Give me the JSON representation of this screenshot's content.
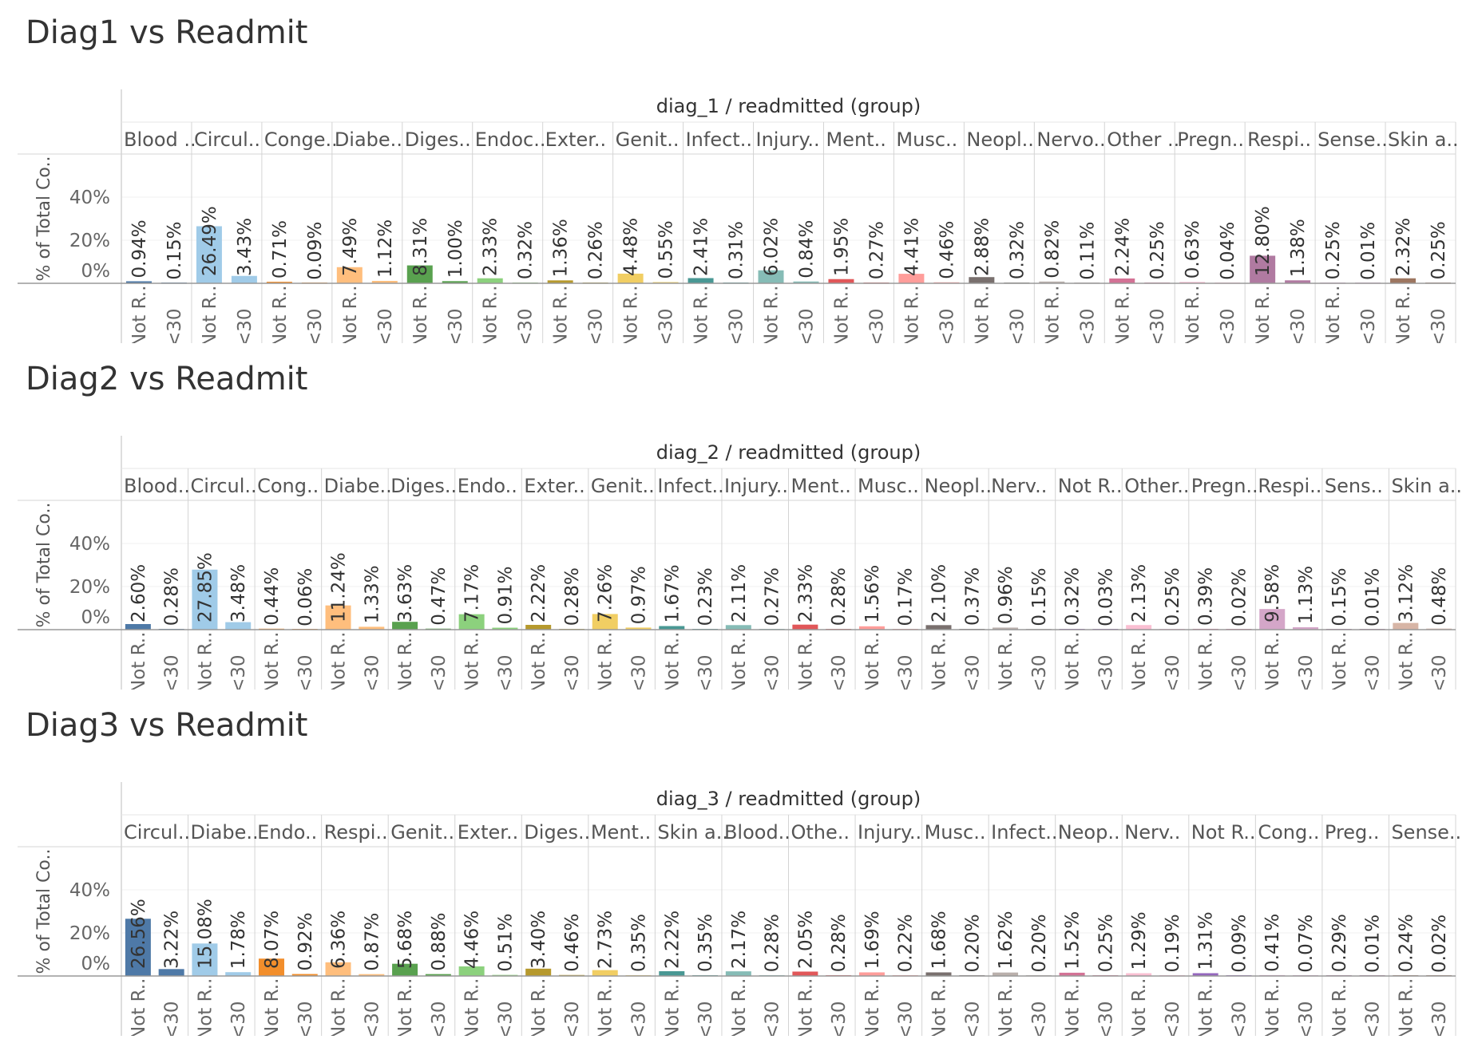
{
  "chart_data": [
    {
      "type": "bar",
      "title": "Diag1 vs Readmit",
      "header": "diag_1  /  readmitted (group)",
      "ylabel": "% of Total Co..",
      "yticks": [
        "40%",
        "20%",
        "0%"
      ],
      "ylim": [
        0,
        60
      ],
      "groups": [
        "Blood ..",
        "Circul..",
        "Conge..",
        "Diabe..",
        "Diges..",
        "Endoc..",
        "Exter..",
        "Genit..",
        "Infect..",
        "Injury..",
        "Ment..",
        "Musc..",
        "Neopl..",
        "Nervo..",
        "Other ..",
        "Pregn..",
        "Respi..",
        "Sense..",
        "Skin a.."
      ],
      "subcategories": [
        "Not R..",
        "<30"
      ],
      "values": [
        [
          0.94,
          0.15
        ],
        [
          26.49,
          3.43
        ],
        [
          0.71,
          0.09
        ],
        [
          7.49,
          1.12
        ],
        [
          8.31,
          1.0
        ],
        [
          2.33,
          0.32
        ],
        [
          1.36,
          0.26
        ],
        [
          4.48,
          0.55
        ],
        [
          2.41,
          0.31
        ],
        [
          6.02,
          0.84
        ],
        [
          1.95,
          0.27
        ],
        [
          4.41,
          0.46
        ],
        [
          2.88,
          0.32
        ],
        [
          0.82,
          0.11
        ],
        [
          2.24,
          0.25
        ],
        [
          0.63,
          0.04
        ],
        [
          12.8,
          1.38
        ],
        [
          0.25,
          0.01
        ],
        [
          2.32,
          0.25
        ]
      ],
      "labels": [
        [
          "0.94%",
          "0.15%"
        ],
        [
          "26.49%",
          "3.43%"
        ],
        [
          "0.71%",
          "0.09%"
        ],
        [
          "7.49%",
          "1.12%"
        ],
        [
          "8.31%",
          "1.00%"
        ],
        [
          "2.33%",
          "0.32%"
        ],
        [
          "1.36%",
          "0.26%"
        ],
        [
          "4.48%",
          "0.55%"
        ],
        [
          "2.41%",
          "0.31%"
        ],
        [
          "6.02%",
          "0.84%"
        ],
        [
          "1.95%",
          "0.27%"
        ],
        [
          "4.41%",
          "0.46%"
        ],
        [
          "2.88%",
          "0.32%"
        ],
        [
          "0.82%",
          "0.11%"
        ],
        [
          "2.24%",
          "0.25%"
        ],
        [
          "0.63%",
          "0.04%"
        ],
        [
          "12.80%",
          "1.38%"
        ],
        [
          "0.25%",
          "0.01%"
        ],
        [
          "2.32%",
          "0.25%"
        ]
      ],
      "colors": [
        "#4e79a7",
        "#a0cbe8",
        "#f28e2b",
        "#ffbe7d",
        "#59a14f",
        "#8cd17d",
        "#b6992d",
        "#f1ce63",
        "#499894",
        "#86bcb6",
        "#e15759",
        "#ff9d9a",
        "#79706e",
        "#bab0ac",
        "#d37295",
        "#fabfd2",
        "#b07aa1",
        "#d4a6c8",
        "#9d7660"
      ]
    },
    {
      "type": "bar",
      "title": "Diag2 vs Readmit",
      "header": "diag_2  /  readmitted (group)",
      "ylabel": "% of Total Co..",
      "yticks": [
        "40%",
        "20%",
        "0%"
      ],
      "ylim": [
        0,
        60
      ],
      "groups": [
        "Blood..",
        "Circul..",
        "Cong..",
        "Diabe..",
        "Diges..",
        "Endo..",
        "Exter..",
        "Genit..",
        "Infect..",
        "Injury..",
        "Ment..",
        "Musc..",
        "Neopl..",
        "Nerv..",
        "Not R..",
        "Other..",
        "Pregn..",
        "Respi..",
        "Sens..",
        "Skin a.."
      ],
      "subcategories": [
        "Not R..",
        "<30"
      ],
      "values": [
        [
          2.6,
          0.28
        ],
        [
          27.85,
          3.48
        ],
        [
          0.44,
          0.06
        ],
        [
          11.24,
          1.33
        ],
        [
          3.63,
          0.47
        ],
        [
          7.17,
          0.91
        ],
        [
          2.22,
          0.28
        ],
        [
          7.26,
          0.97
        ],
        [
          1.67,
          0.23
        ],
        [
          2.11,
          0.27
        ],
        [
          2.33,
          0.28
        ],
        [
          1.56,
          0.17
        ],
        [
          2.1,
          0.37
        ],
        [
          0.96,
          0.15
        ],
        [
          0.32,
          0.03
        ],
        [
          2.13,
          0.25
        ],
        [
          0.39,
          0.02
        ],
        [
          9.58,
          1.13
        ],
        [
          0.15,
          0.01
        ],
        [
          3.12,
          0.48
        ]
      ],
      "labels": [
        [
          "2.60%",
          "0.28%"
        ],
        [
          "27.85%",
          "3.48%"
        ],
        [
          "0.44%",
          "0.06%"
        ],
        [
          "11.24%",
          "1.33%"
        ],
        [
          "3.63%",
          "0.47%"
        ],
        [
          "7.17%",
          "0.91%"
        ],
        [
          "2.22%",
          "0.28%"
        ],
        [
          "7.26%",
          "0.97%"
        ],
        [
          "1.67%",
          "0.23%"
        ],
        [
          "2.11%",
          "0.27%"
        ],
        [
          "2.33%",
          "0.28%"
        ],
        [
          "1.56%",
          "0.17%"
        ],
        [
          "2.10%",
          "0.37%"
        ],
        [
          "0.96%",
          "0.15%"
        ],
        [
          "0.32%",
          "0.03%"
        ],
        [
          "2.13%",
          "0.25%"
        ],
        [
          "0.39%",
          "0.02%"
        ],
        [
          "9.58%",
          "1.13%"
        ],
        [
          "0.15%",
          "0.01%"
        ],
        [
          "3.12%",
          "0.48%"
        ]
      ],
      "colors": [
        "#4e79a7",
        "#a0cbe8",
        "#f28e2b",
        "#ffbe7d",
        "#59a14f",
        "#8cd17d",
        "#b6992d",
        "#f1ce63",
        "#499894",
        "#86bcb6",
        "#e15759",
        "#ff9d9a",
        "#79706e",
        "#bab0ac",
        "#9467bd",
        "#fabfd2",
        "#d37295",
        "#d4a6c8",
        "#b07aa1",
        "#d7b5a6"
      ]
    },
    {
      "type": "bar",
      "title": "Diag3 vs Readmit",
      "header": "diag_3  /  readmitted (group)",
      "ylabel": "% of Total Co..",
      "yticks": [
        "40%",
        "20%",
        "0%"
      ],
      "ylim": [
        0,
        60
      ],
      "groups": [
        "Circul..",
        "Diabe..",
        "Endo..",
        "Respi..",
        "Genit..",
        "Exter..",
        "Diges..",
        "Ment..",
        "Skin a..",
        "Blood..",
        "Othe..",
        "Injury..",
        "Musc..",
        "Infect..",
        "Neop..",
        "Nerv..",
        "Not R..",
        "Cong..",
        "Preg..",
        "Sense.."
      ],
      "subcategories": [
        "Not R..",
        "<30"
      ],
      "values": [
        [
          26.56,
          3.22
        ],
        [
          15.08,
          1.78
        ],
        [
          8.07,
          0.92
        ],
        [
          6.36,
          0.87
        ],
        [
          5.68,
          0.88
        ],
        [
          4.46,
          0.51
        ],
        [
          3.4,
          0.46
        ],
        [
          2.73,
          0.35
        ],
        [
          2.22,
          0.35
        ],
        [
          2.17,
          0.28
        ],
        [
          2.05,
          0.28
        ],
        [
          1.69,
          0.22
        ],
        [
          1.68,
          0.2
        ],
        [
          1.62,
          0.2
        ],
        [
          1.52,
          0.25
        ],
        [
          1.29,
          0.19
        ],
        [
          1.31,
          0.09
        ],
        [
          0.41,
          0.07
        ],
        [
          0.29,
          0.01
        ],
        [
          0.24,
          0.02
        ]
      ],
      "labels": [
        [
          "26.56%",
          "3.22%"
        ],
        [
          "15.08%",
          "1.78%"
        ],
        [
          "8.07%",
          "0.92%"
        ],
        [
          "6.36%",
          "0.87%"
        ],
        [
          "5.68%",
          "0.88%"
        ],
        [
          "4.46%",
          "0.51%"
        ],
        [
          "3.40%",
          "0.46%"
        ],
        [
          "2.73%",
          "0.35%"
        ],
        [
          "2.22%",
          "0.35%"
        ],
        [
          "2.17%",
          "0.28%"
        ],
        [
          "2.05%",
          "0.28%"
        ],
        [
          "1.69%",
          "0.22%"
        ],
        [
          "1.68%",
          "0.20%"
        ],
        [
          "1.62%",
          "0.20%"
        ],
        [
          "1.52%",
          "0.25%"
        ],
        [
          "1.29%",
          "0.19%"
        ],
        [
          "1.31%",
          "0.09%"
        ],
        [
          "0.41%",
          "0.07%"
        ],
        [
          "0.29%",
          "0.01%"
        ],
        [
          "0.24%",
          "0.02%"
        ]
      ],
      "colors": [
        "#4e79a7",
        "#a0cbe8",
        "#f28e2b",
        "#ffbe7d",
        "#59a14f",
        "#8cd17d",
        "#b6992d",
        "#f1ce63",
        "#499894",
        "#86bcb6",
        "#e15759",
        "#ff9d9a",
        "#79706e",
        "#bab0ac",
        "#d37295",
        "#fabfd2",
        "#9467bd",
        "#d4a6c8",
        "#b07aa1",
        "#9d7660"
      ]
    }
  ]
}
